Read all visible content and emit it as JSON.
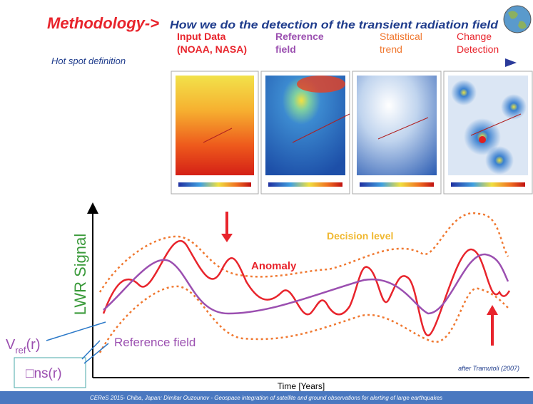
{
  "header": {
    "title": "Methodology->",
    "subtitle": "How we do the detection of the transient radiation field",
    "note": "Hot spot definition"
  },
  "steps": [
    {
      "label": "Input Data",
      "sublabel": "(NOAA, NASA)"
    },
    {
      "label": "Reference",
      "sublabel": "field"
    },
    {
      "label": "Statistical",
      "sublabel": "trend"
    },
    {
      "label": "Change",
      "sublabel": "Detection"
    }
  ],
  "diagram": {
    "y_axis_label": "LWR Signal",
    "x_axis_label": "Time [Years]",
    "decision_label": "Decision level",
    "anomaly_label": "Anomaly",
    "reference_label": "Reference field",
    "vref": {
      "main": "V",
      "sub": "ref",
      "tail": "(r)"
    },
    "sigma_label": "□ns(r)",
    "credit": "after Tramutoli (2007)"
  },
  "footer": "CEReS 2015- Chiba, Japan: Dimitar Ouzounov - Geospace integration of satellite and ground observations for alerting of large earthquakes"
}
